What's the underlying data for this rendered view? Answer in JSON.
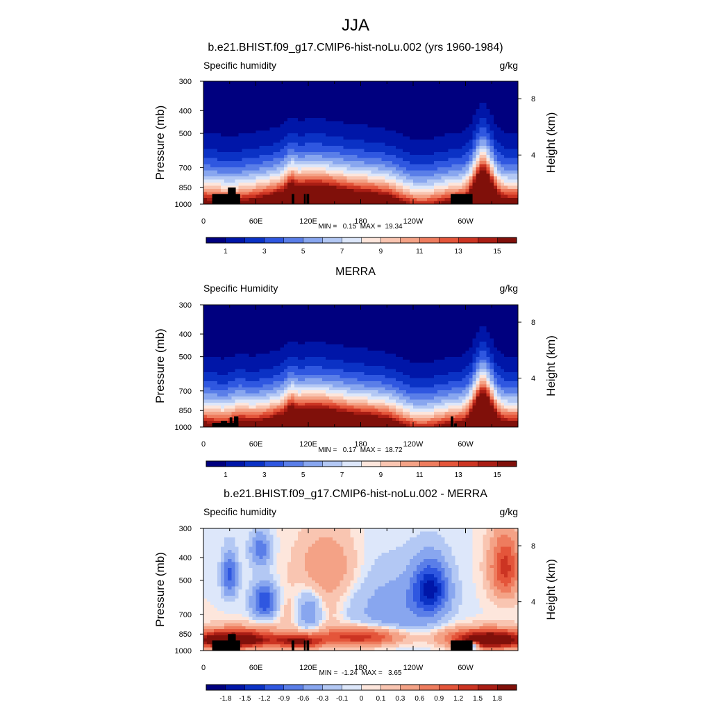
{
  "chart_data": {
    "type": "heatmap",
    "suptitle": "JJA",
    "panels": [
      {
        "title": "b.e21.BHIST.f09_g17.CMIP6-hist-noLu.002 (yrs 1960-1984)",
        "left_label": "Specific humidity",
        "right_label": "g/kg",
        "xlabel": "",
        "ylabel": "Pressure (mb)",
        "y2label": "Height (km)",
        "min_label": "MIN =   0.15  MAX =  19.34",
        "stats": {
          "min": 0.15,
          "max": 19.34
        },
        "kind": "abs"
      },
      {
        "title": "MERRA",
        "left_label": "Specific Humidity",
        "right_label": "g/kg",
        "xlabel": "",
        "ylabel": "Pressure (mb)",
        "y2label": "Height (km)",
        "min_label": "MIN =   0.17  MAX =  18.72",
        "stats": {
          "min": 0.17,
          "max": 18.72
        },
        "kind": "abs"
      },
      {
        "title": "b.e21.BHIST.f09_g17.CMIP6-hist-noLu.002 - MERRA",
        "left_label": "Specific humidity",
        "right_label": "g/kg",
        "xlabel": "",
        "ylabel": "Pressure (mb)",
        "y2label": "Height (km)",
        "min_label": "MIN =  -1.24  MAX =   3.65",
        "stats": {
          "min": -1.24,
          "max": 3.65
        },
        "kind": "diff"
      }
    ],
    "x_ticks": [
      "0",
      "60E",
      "120E",
      "180",
      "120W",
      "60W"
    ],
    "y_ticks": [
      "300",
      "400",
      "500",
      "700",
      "850",
      "1000"
    ],
    "y_tick_values": [
      300,
      400,
      500,
      700,
      850,
      1000
    ],
    "y2_ticks": [
      "8",
      "4"
    ],
    "ylim": [
      1000,
      300
    ],
    "xlim": [
      0,
      360
    ],
    "abs_colorbar": {
      "colors": [
        "#00007f",
        "#0016a8",
        "#0b32c5",
        "#2f57e0",
        "#5a7ee8",
        "#88a6ef",
        "#b3c8f4",
        "#dde7fa",
        "#fde6dc",
        "#f9c5b1",
        "#f4a286",
        "#ee7c5e",
        "#e4553a",
        "#cc3422",
        "#a91d14",
        "#80100a"
      ],
      "labels": [
        "1",
        "3",
        "5",
        "7",
        "9",
        "11",
        "13",
        "15"
      ],
      "label_positions": [
        1,
        3,
        5,
        7,
        9,
        11,
        13,
        15
      ]
    },
    "diff_colorbar": {
      "colors": [
        "#00007f",
        "#0016a8",
        "#0b32c5",
        "#2f57e0",
        "#5a7ee8",
        "#88a6ef",
        "#b3c8f4",
        "#dde7fa",
        "#fde6dc",
        "#f9c5b1",
        "#f4a286",
        "#ee7c5e",
        "#e4553a",
        "#cc3422",
        "#a91d14",
        "#80100a"
      ],
      "labels": [
        "-1.8",
        "-1.5",
        "-1.2",
        "-0.9",
        "-0.6",
        "-0.3",
        "-0.1",
        "0",
        "0.1",
        "0.3",
        "0.6",
        "0.9",
        "1.2",
        "1.5",
        "1.8"
      ],
      "label_positions": [
        1,
        2,
        3,
        4,
        5,
        6,
        7,
        8,
        9,
        10,
        11,
        12,
        13,
        14,
        15
      ]
    }
  }
}
